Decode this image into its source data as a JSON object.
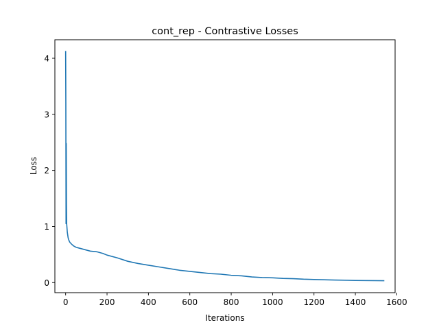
{
  "chart_data": {
    "type": "line",
    "title": "cont_rep - Contrastive Losses",
    "xlabel": "Iterations",
    "ylabel": "Loss",
    "xlim": [
      -52,
      1592
    ],
    "ylim": [
      -0.18,
      4.33
    ],
    "xticks": [
      0,
      200,
      400,
      600,
      800,
      1000,
      1200,
      1400,
      1600
    ],
    "yticks": [
      0,
      1,
      2,
      3,
      4
    ],
    "grid": false,
    "legend": "none",
    "series": [
      {
        "color": "#1f77b4",
        "x": [
          0,
          1,
          2,
          3,
          4,
          5,
          6,
          7,
          8,
          10,
          12,
          15,
          20,
          25,
          30,
          40,
          50,
          60,
          80,
          100,
          120,
          150,
          180,
          200,
          250,
          300,
          350,
          400,
          450,
          500,
          550,
          600,
          650,
          700,
          750,
          800,
          850,
          900,
          950,
          1000,
          1050,
          1100,
          1150,
          1200,
          1250,
          1300,
          1350,
          1400,
          1450,
          1500,
          1540
        ],
        "y": [
          4.13,
          3.2,
          1.05,
          2.48,
          1.4,
          1.05,
          1.0,
          0.95,
          0.9,
          0.85,
          0.8,
          0.76,
          0.72,
          0.7,
          0.68,
          0.65,
          0.63,
          0.62,
          0.6,
          0.58,
          0.56,
          0.55,
          0.52,
          0.49,
          0.44,
          0.38,
          0.34,
          0.31,
          0.28,
          0.25,
          0.22,
          0.2,
          0.18,
          0.16,
          0.15,
          0.13,
          0.12,
          0.1,
          0.09,
          0.085,
          0.075,
          0.07,
          0.06,
          0.055,
          0.05,
          0.045,
          0.042,
          0.038,
          0.036,
          0.035,
          0.033
        ]
      }
    ]
  }
}
